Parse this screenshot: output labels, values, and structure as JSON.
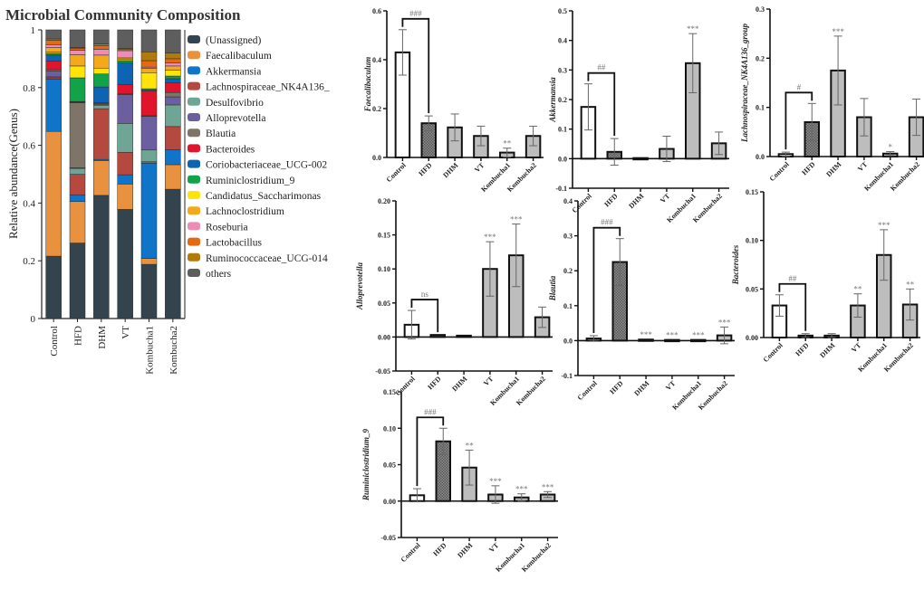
{
  "chart_data": [
    {
      "type": "bar",
      "stacked": true,
      "title": "Microbial Community Composition",
      "xlabel": "",
      "ylabel": "Relative abundance(Genus)",
      "ylim": [
        0,
        1
      ],
      "yticks": [
        "0",
        "0.2",
        "0.4",
        "0.6",
        "0.8",
        "1"
      ],
      "categories": [
        "Control",
        "HFD",
        "DHM",
        "VT",
        "Kombucha1",
        "Kombucha2"
      ],
      "legend_position": "right",
      "series": [
        {
          "name": "(Unassigned)",
          "color": "#34444f",
          "values": [
            0.215,
            0.255,
            0.425,
            0.378,
            0.185,
            0.448
          ]
        },
        {
          "name": "Faecalibaculum",
          "color": "#e8913e",
          "values": [
            0.43,
            0.14,
            0.12,
            0.088,
            0.02,
            0.085
          ]
        },
        {
          "name": "Akkermansia",
          "color": "#1075c8",
          "values": [
            0.18,
            0.022,
            0.004,
            0.032,
            0.325,
            0.052
          ]
        },
        {
          "name": "Lachnospiraceae_NK4A136_",
          "color": "#b5483f",
          "values": [
            0.005,
            0.07,
            0.175,
            0.078,
            0.005,
            0.08
          ]
        },
        {
          "name": "Desulfovibrio",
          "color": "#6fa594",
          "values": [
            0.003,
            0.02,
            0.012,
            0.1,
            0.04,
            0.075
          ]
        },
        {
          "name": "Alloprevotella",
          "color": "#6b5f9f",
          "values": [
            0.02,
            0.002,
            0.002,
            0.1,
            0.115,
            0.028
          ]
        },
        {
          "name": "Blautia",
          "color": "#7e7468",
          "values": [
            0.005,
            0.22,
            0.004,
            0.002,
            0.002,
            0.015
          ]
        },
        {
          "name": "Bacteroides",
          "color": "#e0142a",
          "values": [
            0.03,
            0.002,
            0.002,
            0.032,
            0.085,
            0.033
          ]
        },
        {
          "name": "Coriobacteriaceae_UCG-002",
          "color": "#0c64b2",
          "values": [
            0.02,
            0.002,
            0.055,
            0.075,
            0.002,
            0.015
          ]
        },
        {
          "name": "Ruminiclostridium_9",
          "color": "#12a24a",
          "values": [
            0.006,
            0.08,
            0.045,
            0.008,
            0.005,
            0.009
          ]
        },
        {
          "name": "Candidatus_Saccharimonas",
          "color": "#ffe30a",
          "values": [
            0.005,
            0.04,
            0.02,
            0.004,
            0.055,
            0.02
          ]
        },
        {
          "name": "Lachnoclostridium",
          "color": "#f4a81c",
          "values": [
            0.015,
            0.038,
            0.045,
            0.006,
            0.015,
            0.015
          ]
        },
        {
          "name": "Roseburia",
          "color": "#ec8db8",
          "values": [
            0.01,
            0.015,
            0.02,
            0.025,
            0.004,
            0.01
          ]
        },
        {
          "name": "Lactobacillus",
          "color": "#e36a12",
          "values": [
            0.015,
            0.006,
            0.012,
            0.004,
            0.022,
            0.015
          ]
        },
        {
          "name": "Ruminococcaceae_UCG-014",
          "color": "#b27a0a",
          "values": [
            0.005,
            0.003,
            0.006,
            0.003,
            0.03,
            0.02
          ]
        },
        {
          "name": "others",
          "color": "#5e5e5e",
          "values": [
            0.031,
            0.06,
            0.049,
            0.065,
            0.075,
            0.08
          ]
        }
      ]
    },
    {
      "type": "bar",
      "ylabel": "Faecalibaculum",
      "ylim": [
        0,
        0.6
      ],
      "yticks": [
        "0.0",
        "0.2",
        "0.4",
        "0.6"
      ],
      "categories": [
        "Control",
        "HFD",
        "DHM",
        "VT",
        "Kombucha1",
        "Kombucha2"
      ],
      "values": [
        0.43,
        0.14,
        0.123,
        0.088,
        0.02,
        0.088
      ],
      "errors": [
        0.093,
        0.03,
        0.055,
        0.04,
        0.018,
        0.04
      ],
      "significance": [
        "",
        "",
        "",
        "",
        "**",
        ""
      ],
      "bracket": {
        "label": "###",
        "from": "Control",
        "to": "HFD"
      }
    },
    {
      "type": "bar",
      "ylabel": "Akkermansia",
      "ylim": [
        -0.1,
        0.5
      ],
      "yticks": [
        "-0.1",
        "0.0",
        "0.1",
        "0.2",
        "0.3",
        "0.4",
        "0.5"
      ],
      "categories": [
        "Control",
        "HFD",
        "DHM",
        "VT",
        "Kombucha1",
        "Kombucha2"
      ],
      "values": [
        0.175,
        0.023,
        0.002,
        0.033,
        0.323,
        0.052
      ],
      "errors": [
        0.078,
        0.045,
        0.0,
        0.043,
        0.1,
        0.038
      ],
      "significance": [
        "",
        "",
        "",
        "",
        "***",
        ""
      ],
      "bracket": {
        "label": "##",
        "from": "Control",
        "to": "HFD"
      }
    },
    {
      "type": "bar",
      "ylabel": "Lachnospiraceae_NK4A136_group",
      "ylim": [
        0,
        0.3
      ],
      "yticks": [
        "0.0",
        "0.1",
        "0.2",
        "0.3"
      ],
      "categories": [
        "Control",
        "HFD",
        "DHM",
        "VT",
        "Kombucha1",
        "Kombucha2"
      ],
      "values": [
        0.005,
        0.07,
        0.175,
        0.08,
        0.006,
        0.08
      ],
      "errors": [
        0.004,
        0.038,
        0.07,
        0.038,
        0.004,
        0.037
      ],
      "significance": [
        "",
        "",
        "***",
        "",
        "*",
        ""
      ],
      "bracket": {
        "label": "#",
        "from": "Control",
        "to": "HFD"
      }
    },
    {
      "type": "bar",
      "ylabel": "Alloprevotella",
      "ylim": [
        -0.05,
        0.2
      ],
      "yticks": [
        "-0.05",
        "0.00",
        "0.05",
        "0.10",
        "0.15",
        "0.20"
      ],
      "categories": [
        "Control",
        "HFD",
        "DHM",
        "VT",
        "Kombucha1",
        "Kombucha2"
      ],
      "values": [
        0.018,
        0.003,
        0.002,
        0.1,
        0.12,
        0.029
      ],
      "errors": [
        0.021,
        0.0,
        0.0,
        0.04,
        0.046,
        0.015
      ],
      "significance": [
        "",
        "",
        "",
        "***",
        "***",
        ""
      ],
      "bracket": {
        "label": "ns",
        "from": "Control",
        "to": "HFD"
      }
    },
    {
      "type": "bar",
      "ylabel": "Blautia",
      "ylim": [
        -0.1,
        0.4
      ],
      "yticks": [
        "-0.1",
        "0.0",
        "0.1",
        "0.2",
        "0.3",
        "0.4"
      ],
      "categories": [
        "Control",
        "HFD",
        "DHM",
        "VT",
        "Kombucha1",
        "Kombucha2"
      ],
      "values": [
        0.006,
        0.225,
        0.003,
        0.002,
        0.002,
        0.015
      ],
      "errors": [
        0.008,
        0.067,
        0.0,
        0.0,
        0.0,
        0.024
      ],
      "significance": [
        "",
        "",
        "***",
        "***",
        "***",
        "***"
      ],
      "bracket": {
        "label": "###",
        "from": "Control",
        "to": "HFD"
      }
    },
    {
      "type": "bar",
      "ylabel": "Bacteroides",
      "ylim": [
        0,
        0.15
      ],
      "yticks": [
        "0.00",
        "0.05",
        "0.10",
        "0.15"
      ],
      "categories": [
        "Control",
        "HFD",
        "DHM",
        "VT",
        "Kombucha1",
        "Kombucha2"
      ],
      "values": [
        0.033,
        0.002,
        0.002,
        0.033,
        0.085,
        0.034
      ],
      "errors": [
        0.011,
        0.002,
        0.002,
        0.012,
        0.026,
        0.016
      ],
      "significance": [
        "",
        "",
        "",
        "**",
        "***",
        "**"
      ],
      "bracket": {
        "label": "##",
        "from": "Control",
        "to": "HFD"
      }
    },
    {
      "type": "bar",
      "ylabel": "Ruminiclostridium_9",
      "ylim": [
        -0.05,
        0.15
      ],
      "yticks": [
        "-0.05",
        "0.00",
        "0.05",
        "0.10",
        "0.15"
      ],
      "categories": [
        "Control",
        "HFD",
        "DHM",
        "VT",
        "Kombucha1",
        "Kombucha2"
      ],
      "values": [
        0.008,
        0.082,
        0.046,
        0.009,
        0.005,
        0.009
      ],
      "errors": [
        0.009,
        0.018,
        0.024,
        0.012,
        0.005,
        0.004
      ],
      "significance": [
        "",
        "",
        "**",
        "***",
        "***",
        "***"
      ],
      "bracket": {
        "label": "###",
        "from": "Control",
        "to": "HFD"
      }
    }
  ]
}
